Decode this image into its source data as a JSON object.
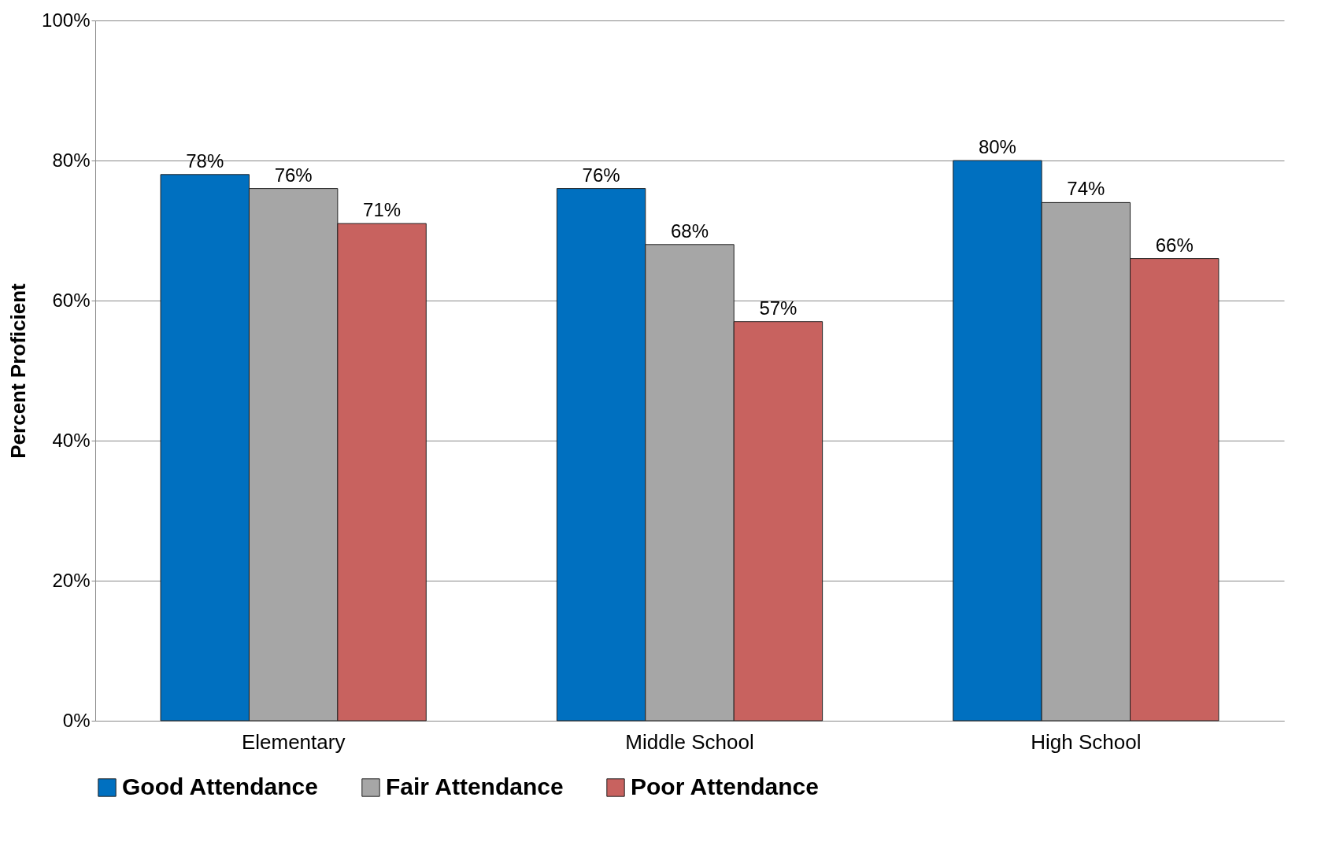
{
  "chart_data": {
    "type": "bar",
    "ylabel": "Percent Proficient",
    "categories": [
      "Elementary",
      "Middle School",
      "High School"
    ],
    "series": [
      {
        "name": "Good Attendance",
        "color": "#0070c0",
        "values": [
          78,
          76,
          80
        ],
        "value_labels": [
          "78%",
          "76%",
          "80%"
        ]
      },
      {
        "name": "Fair Attendance",
        "color": "#a6a6a6",
        "values": [
          76,
          68,
          74
        ],
        "value_labels": [
          "76%",
          "68%",
          "74%"
        ]
      },
      {
        "name": "Poor Attendance",
        "color": "#c8625f",
        "values": [
          71,
          57,
          66
        ],
        "value_labels": [
          "71%",
          "57%",
          "66%"
        ]
      }
    ],
    "ylim": [
      0,
      100
    ],
    "yticks": [
      {
        "value": 0,
        "label": "0%"
      },
      {
        "value": 20,
        "label": "20%"
      },
      {
        "value": 40,
        "label": "40%"
      },
      {
        "value": 60,
        "label": "60%"
      },
      {
        "value": 80,
        "label": "80%"
      },
      {
        "value": 100,
        "label": "100%"
      }
    ],
    "grid": "y",
    "legend": "bottom"
  }
}
